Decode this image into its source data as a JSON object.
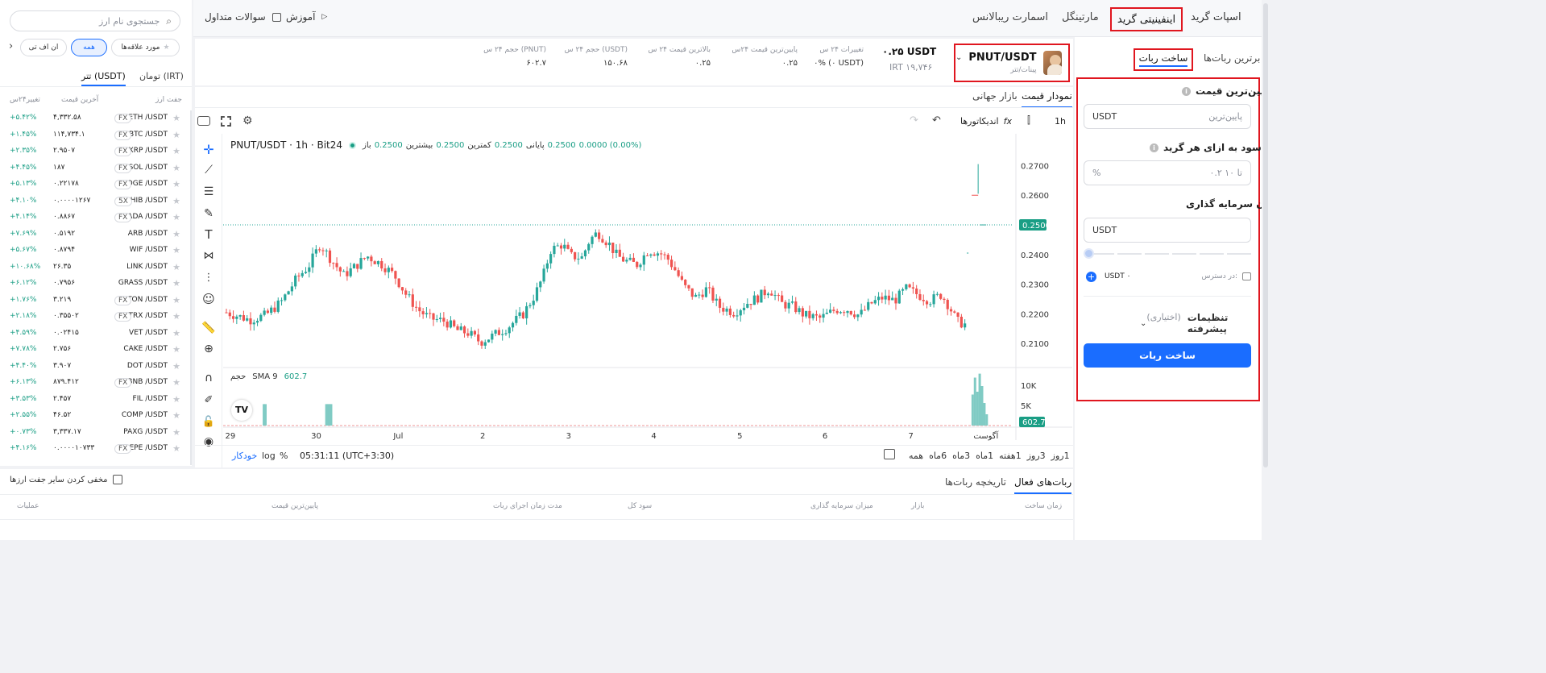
{
  "top_nav": {
    "tabs": [
      "اسپات گرید",
      "اینفینیتی گرید",
      "مارتینگل",
      "اسمارت ریبالانس"
    ],
    "active_tab": 1,
    "help": [
      "آموزش",
      "سوالات متداول"
    ]
  },
  "left_panel": {
    "tabs": [
      "برترین ربات‌ها",
      "ساخت ربات"
    ],
    "active_tab": 1,
    "form": {
      "lowest_price_label": "پایین‌ترین قیمت",
      "lowest_price_placeholder": "پایین‌ترین",
      "lowest_price_unit": "USDT",
      "profit_label": "درصد سود به ازای هر گرید",
      "profit_placeholder": "۰.۲ تا ۱۰",
      "profit_unit": "%",
      "investment_label": "میزان سرمایه گذاری",
      "investment_unit": "USDT",
      "available_label": "در دسترس:",
      "available_value": "USDT ۰",
      "advanced_label": "تنظیمات پیشرفته",
      "advanced_optional": "(اختیاری)",
      "submit_label": "ساخت ربات"
    }
  },
  "ticker": {
    "pair": "PNUT/USDT",
    "pair_sub": "پینات/تتر",
    "price": "۰.۲۵ USDT",
    "price_irt": "IRT ۱۹,۷۴۶",
    "stats": [
      {
        "label": "تغییرات ۲۴ س",
        "value": "۰% (۰ USDT)"
      },
      {
        "label": "پایین‌ترین قیمت ۲۴س",
        "value": "۰.۲۵"
      },
      {
        "label": "بالاترین قیمت ۲۴ س",
        "value": "۰.۲۵"
      },
      {
        "label": "حجم ۲۴ س (USDT)",
        "value": "۱۵۰.۶۸"
      },
      {
        "label": "حجم ۲۴ س (PNUT)",
        "value": "۶۰۲.۷"
      }
    ]
  },
  "chart_tabs": [
    "نمودار قیمت",
    "بازار جهانی"
  ],
  "chart_toolbar": {
    "interval": "1h",
    "indicators": "اندیکاتورها"
  },
  "chart_header": {
    "symbol": "PNUT/USDT · 1h · Bit24",
    "open_label": "باز",
    "open_value": "0.2500",
    "high_label": "بیشترین",
    "high_value": "0.2500",
    "low_label": "کمترین",
    "low_value": "0.2500",
    "close_label": "پایانی",
    "close_value": "0.2500",
    "change": "0.0000 (0.00%)"
  },
  "volume_header": {
    "label": "حجم",
    "sma": "SMA 9",
    "value": "602.7"
  },
  "chart_bottom": {
    "ranges": [
      "1روز",
      "3روز",
      "1هفته",
      "1ماه",
      "3ماه",
      "6ماه",
      "همه"
    ],
    "time": "05:31:11 (UTC+3:30)",
    "pct": "%",
    "log": "log",
    "auto": "خودکار"
  },
  "chart_data": {
    "type": "candlestick",
    "symbol": "PNUT/USDT",
    "interval": "1h",
    "y_ticks": [
      "0.2700",
      "0.2600",
      "0.2500",
      "0.2400",
      "0.2300",
      "0.2200",
      "0.2100"
    ],
    "ylim": [
      0.203,
      0.278
    ],
    "x_ticks": [
      "29",
      "30",
      "Jul",
      "2",
      "3",
      "4",
      "5",
      "6",
      "7",
      "آگوست"
    ],
    "current_price": "0.2500",
    "volume_ticks": [
      "10K",
      "5K"
    ],
    "volume_current": "602.7",
    "colors": {
      "up": "#26a69a",
      "down": "#ef5350"
    },
    "close_path": [
      [
        0,
        0.2205
      ],
      [
        0.03,
        0.218
      ],
      [
        0.05,
        0.2195
      ],
      [
        0.07,
        0.224
      ],
      [
        0.09,
        0.232
      ],
      [
        0.105,
        0.236
      ],
      [
        0.12,
        0.2435
      ],
      [
        0.135,
        0.238
      ],
      [
        0.15,
        0.233
      ],
      [
        0.165,
        0.236
      ],
      [
        0.18,
        0.2395
      ],
      [
        0.2,
        0.2365
      ],
      [
        0.215,
        0.233
      ],
      [
        0.23,
        0.2265
      ],
      [
        0.245,
        0.2215
      ],
      [
        0.26,
        0.2185
      ],
      [
        0.28,
        0.2175
      ],
      [
        0.295,
        0.2145
      ],
      [
        0.31,
        0.2135
      ],
      [
        0.325,
        0.2105
      ],
      [
        0.34,
        0.2125
      ],
      [
        0.36,
        0.2155
      ],
      [
        0.38,
        0.22
      ],
      [
        0.395,
        0.2265
      ],
      [
        0.405,
        0.2325
      ],
      [
        0.415,
        0.2415
      ],
      [
        0.43,
        0.2435
      ],
      [
        0.44,
        0.2395
      ],
      [
        0.455,
        0.239
      ],
      [
        0.465,
        0.245
      ],
      [
        0.475,
        0.2475
      ],
      [
        0.49,
        0.2435
      ],
      [
        0.5,
        0.2395
      ],
      [
        0.51,
        0.238
      ],
      [
        0.525,
        0.2365
      ],
      [
        0.54,
        0.2415
      ],
      [
        0.555,
        0.2405
      ],
      [
        0.565,
        0.2385
      ],
      [
        0.575,
        0.2345
      ],
      [
        0.585,
        0.2295
      ],
      [
        0.6,
        0.2255
      ],
      [
        0.615,
        0.2285
      ],
      [
        0.63,
        0.2225
      ],
      [
        0.65,
        0.2205
      ],
      [
        0.665,
        0.2235
      ],
      [
        0.68,
        0.2255
      ],
      [
        0.695,
        0.2285
      ],
      [
        0.71,
        0.2235
      ],
      [
        0.725,
        0.2225
      ],
      [
        0.74,
        0.2195
      ],
      [
        0.76,
        0.2185
      ],
      [
        0.78,
        0.2215
      ],
      [
        0.795,
        0.2215
      ],
      [
        0.81,
        0.2195
      ],
      [
        0.825,
        0.2235
      ],
      [
        0.84,
        0.2255
      ],
      [
        0.855,
        0.2245
      ],
      [
        0.87,
        0.2285
      ],
      [
        0.885,
        0.2265
      ],
      [
        0.9,
        0.2245
      ],
      [
        0.915,
        0.2265
      ],
      [
        0.925,
        0.2225
      ],
      [
        0.935,
        0.2175
      ],
      [
        0.945,
        0.2165
      ]
    ],
    "volume_bars": [
      [
        0.048,
        0.38
      ],
      [
        0.05,
        0.38
      ],
      [
        0.128,
        0.38
      ],
      [
        0.13,
        0.38
      ],
      [
        0.132,
        0.38
      ],
      [
        0.134,
        0.38
      ],
      [
        0.955,
        0.55
      ],
      [
        0.958,
        0.85
      ],
      [
        0.961,
        0.6
      ],
      [
        0.964,
        0.92
      ],
      [
        0.967,
        0.7
      ],
      [
        0.97,
        0.4
      ],
      [
        0.973,
        0.2
      ]
    ]
  },
  "market_list": {
    "search_placeholder": "جستجوی نام ارز",
    "filters": [
      "مورد علاقه‌ها",
      "همه",
      "ان اف تی"
    ],
    "active_filter": 1,
    "currency_tabs": [
      "تومان (IRT)",
      "تتر (USDT)"
    ],
    "active_currency": 1,
    "columns": [
      "جفت ارز",
      "آخرین قیمت",
      "تغییر۲۴س"
    ],
    "rows": [
      {
        "pair": "ETH /USDT",
        "badge": "FX",
        "price": "۴,۳۳۲.۵۸",
        "change": "+۵.۴۲%"
      },
      {
        "pair": "BTC /USDT",
        "badge": "FX",
        "price": "۱۱۴,۷۳۴.۱",
        "change": "+۱.۴۵%"
      },
      {
        "pair": "XRP /USDT",
        "badge": "FX",
        "price": "۲.۹۵۰۷",
        "change": "+۲.۳۵%"
      },
      {
        "pair": "SOL /USDT",
        "badge": "FX",
        "price": "۱۸۷",
        "change": "+۴.۴۵%"
      },
      {
        "pair": "DOGE /USDT",
        "badge": "FX",
        "price": "۰.۲۲۱۷۸",
        "change": "+۵.۱۳%"
      },
      {
        "pair": "SHIB /USDT",
        "badge": "5X",
        "price": "۰.۰۰۰۰۱۲۶۷",
        "change": "+۴.۱۰%"
      },
      {
        "pair": "ADA /USDT",
        "badge": "FX",
        "price": "۰.۸۸۶۷",
        "change": "+۴.۱۴%"
      },
      {
        "pair": "ARB /USDT",
        "badge": "",
        "price": "۰.۵۱۹۲",
        "change": "+۷.۶۹%"
      },
      {
        "pair": "WIF /USDT",
        "badge": "",
        "price": "۰.۸۷۹۴",
        "change": "+۵.۶۷%"
      },
      {
        "pair": "LINK /USDT",
        "badge": "",
        "price": "۲۶.۳۵",
        "change": "+۱۰.۶۸%"
      },
      {
        "pair": "GRASS /USDT",
        "badge": "",
        "price": "۰.۷۹۵۶",
        "change": "+۶.۱۲%"
      },
      {
        "pair": "TON /USDT",
        "badge": "FX",
        "price": "۳.۲۱۹",
        "change": "+۱.۷۶%"
      },
      {
        "pair": "TRX /USDT",
        "badge": "FX",
        "price": "۰.۳۵۵۰۲",
        "change": "+۲.۱۸%"
      },
      {
        "pair": "VET /USDT",
        "badge": "",
        "price": "۰.۰۲۴۱۵",
        "change": "+۴.۵۹%"
      },
      {
        "pair": "CAKE /USDT",
        "badge": "",
        "price": "۲.۷۵۶",
        "change": "+۷.۷۸%"
      },
      {
        "pair": "DOT /USDT",
        "badge": "",
        "price": "۳.۹۰۷",
        "change": "+۴.۴۰%"
      },
      {
        "pair": "BNB /USDT",
        "badge": "FX",
        "price": "۸۷۹.۴۱۲",
        "change": "+۶.۱۳%"
      },
      {
        "pair": "FIL /USDT",
        "badge": "",
        "price": "۲.۴۵۷",
        "change": "+۳.۵۳%"
      },
      {
        "pair": "COMP /USDT",
        "badge": "",
        "price": "۴۶.۵۲",
        "change": "+۲.۵۵%"
      },
      {
        "pair": "PAXG /USDT",
        "badge": "",
        "price": "۳,۳۳۷.۱۷",
        "change": "+۰.۷۳%"
      },
      {
        "pair": "PEPE /USDT",
        "badge": "FX",
        "price": "۰.۰۰۰۰۱۰۷۳۳",
        "change": "+۴.۱۶%"
      }
    ]
  },
  "bottom": {
    "tabs": [
      "ربات‌های فعال",
      "تاریخچه ربات‌ها"
    ],
    "active_tab": 0,
    "hide_others": "مخفی کردن سایر جفت ارزها",
    "columns": [
      "زمان ساخت",
      "بازار",
      "میزان سرمایه گذاری",
      "سود کل",
      "مدت زمان اجرای ربات",
      "پایین‌ترین قیمت",
      "عملیات"
    ]
  },
  "colors": {
    "accent": "#1a6dff",
    "positive": "#1a9e85",
    "negative": "#e0161f",
    "highlight": "#e0161f"
  }
}
